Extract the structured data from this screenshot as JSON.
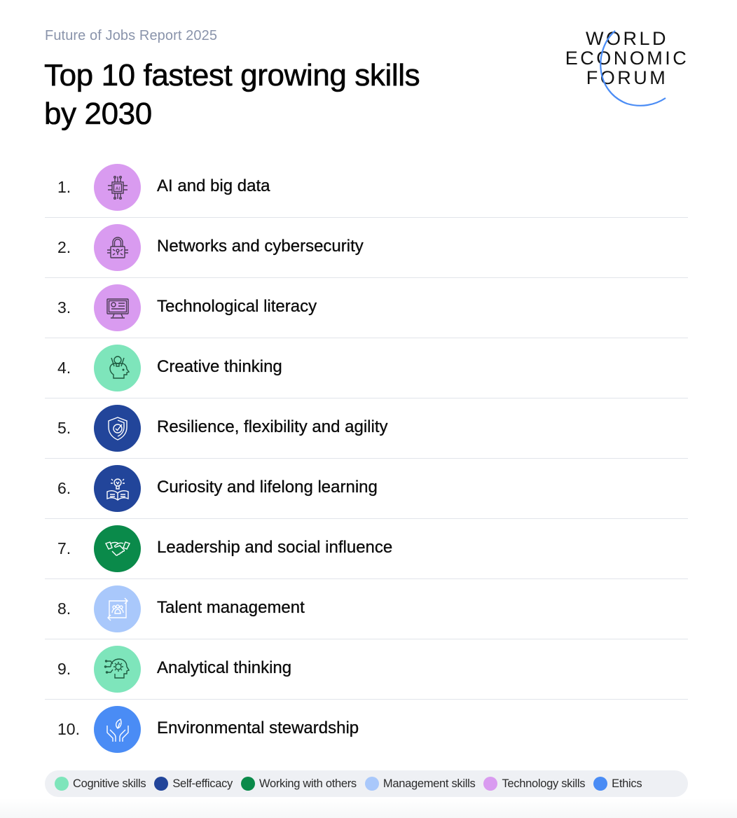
{
  "header": {
    "subtitle": "Future of Jobs Report 2025",
    "title": "Top 10 fastest growing skills by 2030",
    "logo": [
      "WORLD",
      "ECONOMIC",
      "FORUM"
    ]
  },
  "colors": {
    "cognitive": "#7ee5bb",
    "self_efficacy": "#22459a",
    "working_with_others": "#0a8a4a",
    "management": "#a9c8fb",
    "technology": "#d99bf0",
    "ethics": "#4a8cf5",
    "logo_arc": "#4a8cf5"
  },
  "skills": [
    {
      "rank": "1.",
      "label": "AI and big data",
      "category": "technology",
      "icon": "ai-chip-icon"
    },
    {
      "rank": "2.",
      "label": "Networks and cybersecurity",
      "category": "technology",
      "icon": "padlock-circuit-icon"
    },
    {
      "rank": "3.",
      "label": "Technological literacy",
      "category": "technology",
      "icon": "monitor-settings-icon"
    },
    {
      "rank": "4.",
      "label": "Creative thinking",
      "category": "cognitive",
      "icon": "head-lightbulb-pencils-icon"
    },
    {
      "rank": "5.",
      "label": "Resilience, flexibility and agility",
      "category": "self_efficacy",
      "icon": "shield-check-icon"
    },
    {
      "rank": "6.",
      "label": "Curiosity and lifelong learning",
      "category": "self_efficacy",
      "icon": "lightbulb-book-icon"
    },
    {
      "rank": "7.",
      "label": "Leadership and social influence",
      "category": "working_with_others",
      "icon": "handshake-icon"
    },
    {
      "rank": "8.",
      "label": "Talent management",
      "category": "management",
      "icon": "people-cycle-icon"
    },
    {
      "rank": "9.",
      "label": "Analytical thinking",
      "category": "cognitive",
      "icon": "head-gear-icon"
    },
    {
      "rank": "10.",
      "label": "Environmental stewardship",
      "category": "ethics",
      "icon": "hands-leaf-icon"
    }
  ],
  "legend": [
    {
      "label": "Cognitive skills",
      "key": "cognitive"
    },
    {
      "label": "Self-efficacy",
      "key": "self_efficacy"
    },
    {
      "label": "Working with others",
      "key": "working_with_others"
    },
    {
      "label": "Management skills",
      "key": "management"
    },
    {
      "label": "Technology skills",
      "key": "technology"
    },
    {
      "label": "Ethics",
      "key": "ethics"
    }
  ]
}
